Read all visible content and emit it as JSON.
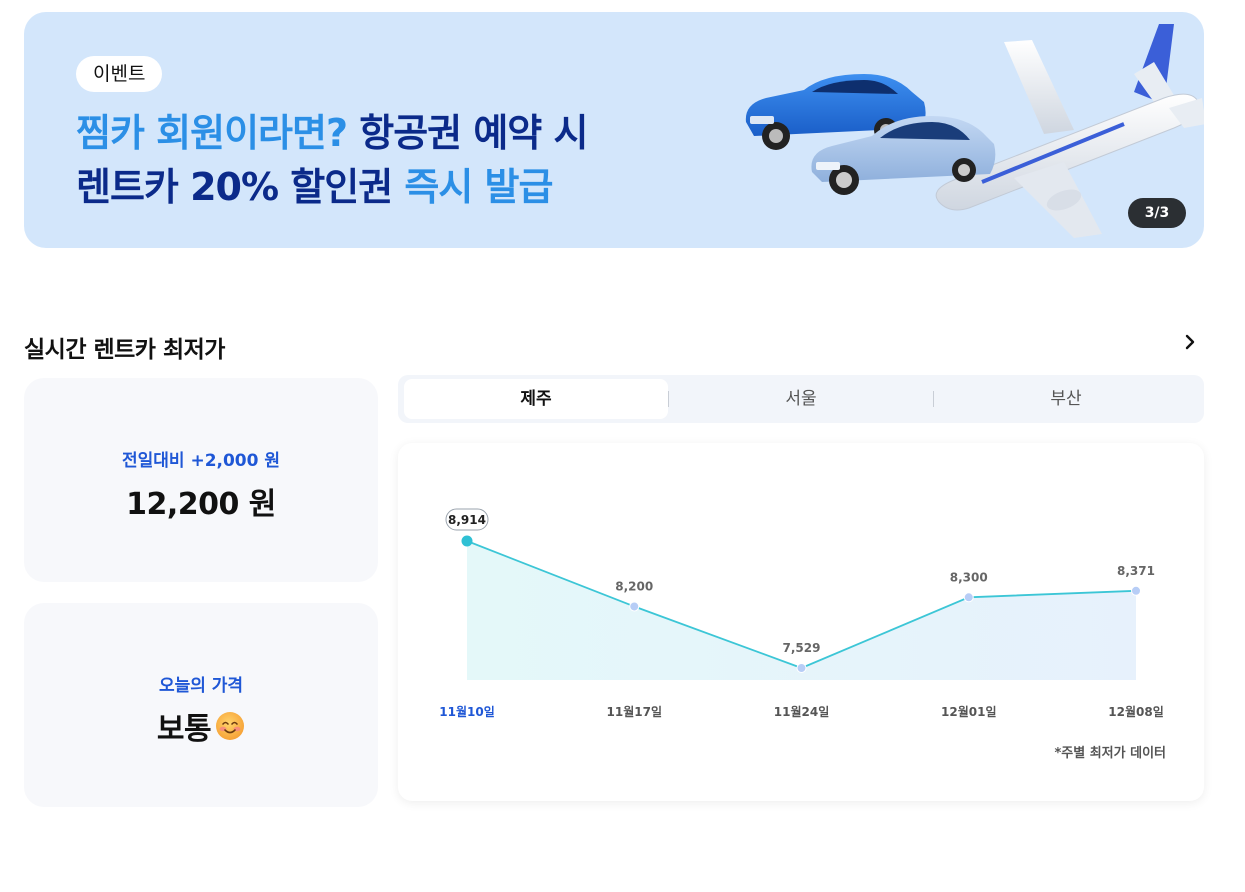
{
  "banner": {
    "badge": "이벤트",
    "line1_a": "찜카 회원이라면?",
    "line1_b": " 항공권 예약 시",
    "line2_a": "렌트카 20% 할인권 ",
    "line2_b": "즉시 발급",
    "counter": "3/3",
    "colors": {
      "background": "#d3e6fb",
      "dark_text": "#0b2a8a",
      "accent_text": "#2b8fe6"
    }
  },
  "section": {
    "title": "실시간 렌트카 최저가",
    "more_icon": "chevron-right-icon"
  },
  "cards": {
    "change": {
      "label": "전일대비 +2,000 원",
      "value": "12,200 원"
    },
    "today": {
      "label": "오늘의 가격",
      "value": "보통",
      "icon": "smiling-face-emoji-icon"
    }
  },
  "tabs": [
    {
      "label": "제주",
      "active": true
    },
    {
      "label": "서울",
      "active": false
    },
    {
      "label": "부산",
      "active": false
    }
  ],
  "chart_data": {
    "type": "area",
    "categories": [
      "11월10일",
      "11월17일",
      "11월24일",
      "12월01일",
      "12월08일"
    ],
    "values": [
      8914,
      8200,
      7529,
      8300,
      8371
    ],
    "value_labels": [
      "8,914",
      "8,200",
      "7,529",
      "8,300",
      "8,371"
    ],
    "highlight_index": 0,
    "note": "*주별 최저가 데이터",
    "ylim": [
      7000,
      9200
    ],
    "grid": false,
    "colors": {
      "line": "#3cc6d6",
      "fill": "#e6f7fb",
      "point": "#b7cdf6",
      "highlight_point": "#2ec0d4",
      "highlight_label": "#1f57d6"
    }
  }
}
